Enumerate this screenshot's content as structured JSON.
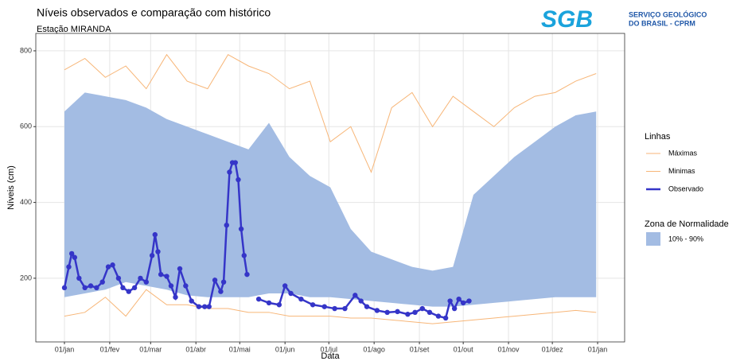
{
  "chart_data": {
    "type": "line",
    "title": "Níveis observados e comparação com histórico",
    "subtitle": "Estação MIRANDA",
    "x_label": "Data",
    "y_label": "Níveis (cm)",
    "xlim": [
      -19.6,
      383.5
    ],
    "ylim": [
      32,
      846
    ],
    "xticks": [
      {
        "value": 0,
        "label": "01/jan"
      },
      {
        "value": 31,
        "label": "01/fev"
      },
      {
        "value": 59,
        "label": "01/mar"
      },
      {
        "value": 90,
        "label": "01/abr"
      },
      {
        "value": 120,
        "label": "01/mai"
      },
      {
        "value": 151,
        "label": "01/jun"
      },
      {
        "value": 181,
        "label": "01/jul"
      },
      {
        "value": 212,
        "label": "01/ago"
      },
      {
        "value": 243,
        "label": "01/set"
      },
      {
        "value": 273,
        "label": "01/out"
      },
      {
        "value": 304,
        "label": "01/nov"
      },
      {
        "value": 334,
        "label": "01/dez"
      },
      {
        "value": 365,
        "label": "01/jan"
      }
    ],
    "yticks": [
      200,
      400,
      600,
      800
    ],
    "grid": true,
    "legend_title": "Linhas",
    "band_legend_title": "Zona de Normalidade",
    "band": {
      "name": "10% - 90%",
      "color": "#a3bce3",
      "x": [
        0,
        14,
        28,
        42,
        56,
        70,
        84,
        98,
        112,
        126,
        140,
        154,
        168,
        182,
        196,
        210,
        224,
        238,
        252,
        266,
        280,
        294,
        308,
        322,
        336,
        350,
        364
      ],
      "upper": [
        640,
        690,
        680,
        670,
        650,
        620,
        600,
        580,
        560,
        540,
        610,
        520,
        470,
        440,
        330,
        270,
        250,
        230,
        220,
        230,
        420,
        470,
        520,
        560,
        600,
        630,
        640
      ],
      "lower": [
        150,
        160,
        170,
        190,
        180,
        170,
        155,
        150,
        150,
        150,
        160,
        160,
        150,
        150,
        145,
        140,
        135,
        130,
        125,
        125,
        130,
        135,
        140,
        145,
        150,
        150,
        150
      ]
    },
    "series": [
      {
        "name": "Máximas",
        "color": "#f7b678",
        "markers": false,
        "x": [
          0,
          14,
          28,
          42,
          56,
          70,
          84,
          98,
          112,
          126,
          140,
          154,
          168,
          182,
          196,
          210,
          224,
          238,
          252,
          266,
          280,
          294,
          308,
          322,
          336,
          350,
          364
        ],
        "values": [
          750,
          780,
          730,
          760,
          700,
          790,
          720,
          700,
          790,
          760,
          740,
          700,
          720,
          560,
          600,
          480,
          650,
          690,
          600,
          680,
          640,
          600,
          650,
          680,
          690,
          720,
          740
        ]
      },
      {
        "name": "Minimas",
        "color": "#f7b678",
        "markers": false,
        "x": [
          0,
          14,
          28,
          42,
          56,
          70,
          84,
          98,
          112,
          126,
          140,
          154,
          168,
          182,
          196,
          210,
          224,
          238,
          252,
          266,
          280,
          294,
          308,
          322,
          336,
          350,
          364
        ],
        "values": [
          100,
          110,
          150,
          100,
          170,
          130,
          130,
          120,
          120,
          110,
          110,
          100,
          100,
          100,
          95,
          95,
          90,
          85,
          80,
          85,
          90,
          95,
          100,
          105,
          110,
          115,
          110
        ]
      },
      {
        "name": "Observado",
        "color": "#3535c8",
        "markers": true,
        "x": [
          0,
          3,
          5,
          7,
          10,
          14,
          18,
          22,
          26,
          30,
          33,
          37,
          40,
          44,
          48,
          52,
          56,
          60,
          62,
          64,
          66,
          70,
          73,
          76,
          79,
          83,
          87,
          92,
          96,
          99,
          103,
          107,
          109,
          111,
          113,
          115,
          117,
          119,
          121,
          123,
          125,
          127,
          133,
          140,
          147,
          151,
          155,
          162,
          170,
          178,
          185,
          192,
          199,
          203,
          207,
          214,
          221,
          228,
          235,
          240,
          245,
          250,
          256,
          261,
          264,
          267,
          270,
          273,
          277
        ],
        "values": [
          175,
          230,
          265,
          255,
          200,
          175,
          180,
          175,
          190,
          230,
          235,
          200,
          175,
          165,
          175,
          200,
          190,
          260,
          315,
          270,
          210,
          205,
          180,
          150,
          225,
          180,
          140,
          125,
          125,
          125,
          195,
          165,
          190,
          340,
          480,
          505,
          505,
          460,
          330,
          260,
          210,
          null,
          145,
          135,
          130,
          180,
          160,
          145,
          130,
          125,
          120,
          120,
          155,
          140,
          125,
          115,
          110,
          112,
          105,
          110,
          120,
          110,
          100,
          95,
          140,
          120,
          145,
          135,
          140
        ]
      }
    ]
  },
  "logo": {
    "mark": "SGB",
    "line1": "SERVIÇO GEOLÓGICO",
    "line2": "DO BRASIL - CPRM"
  }
}
